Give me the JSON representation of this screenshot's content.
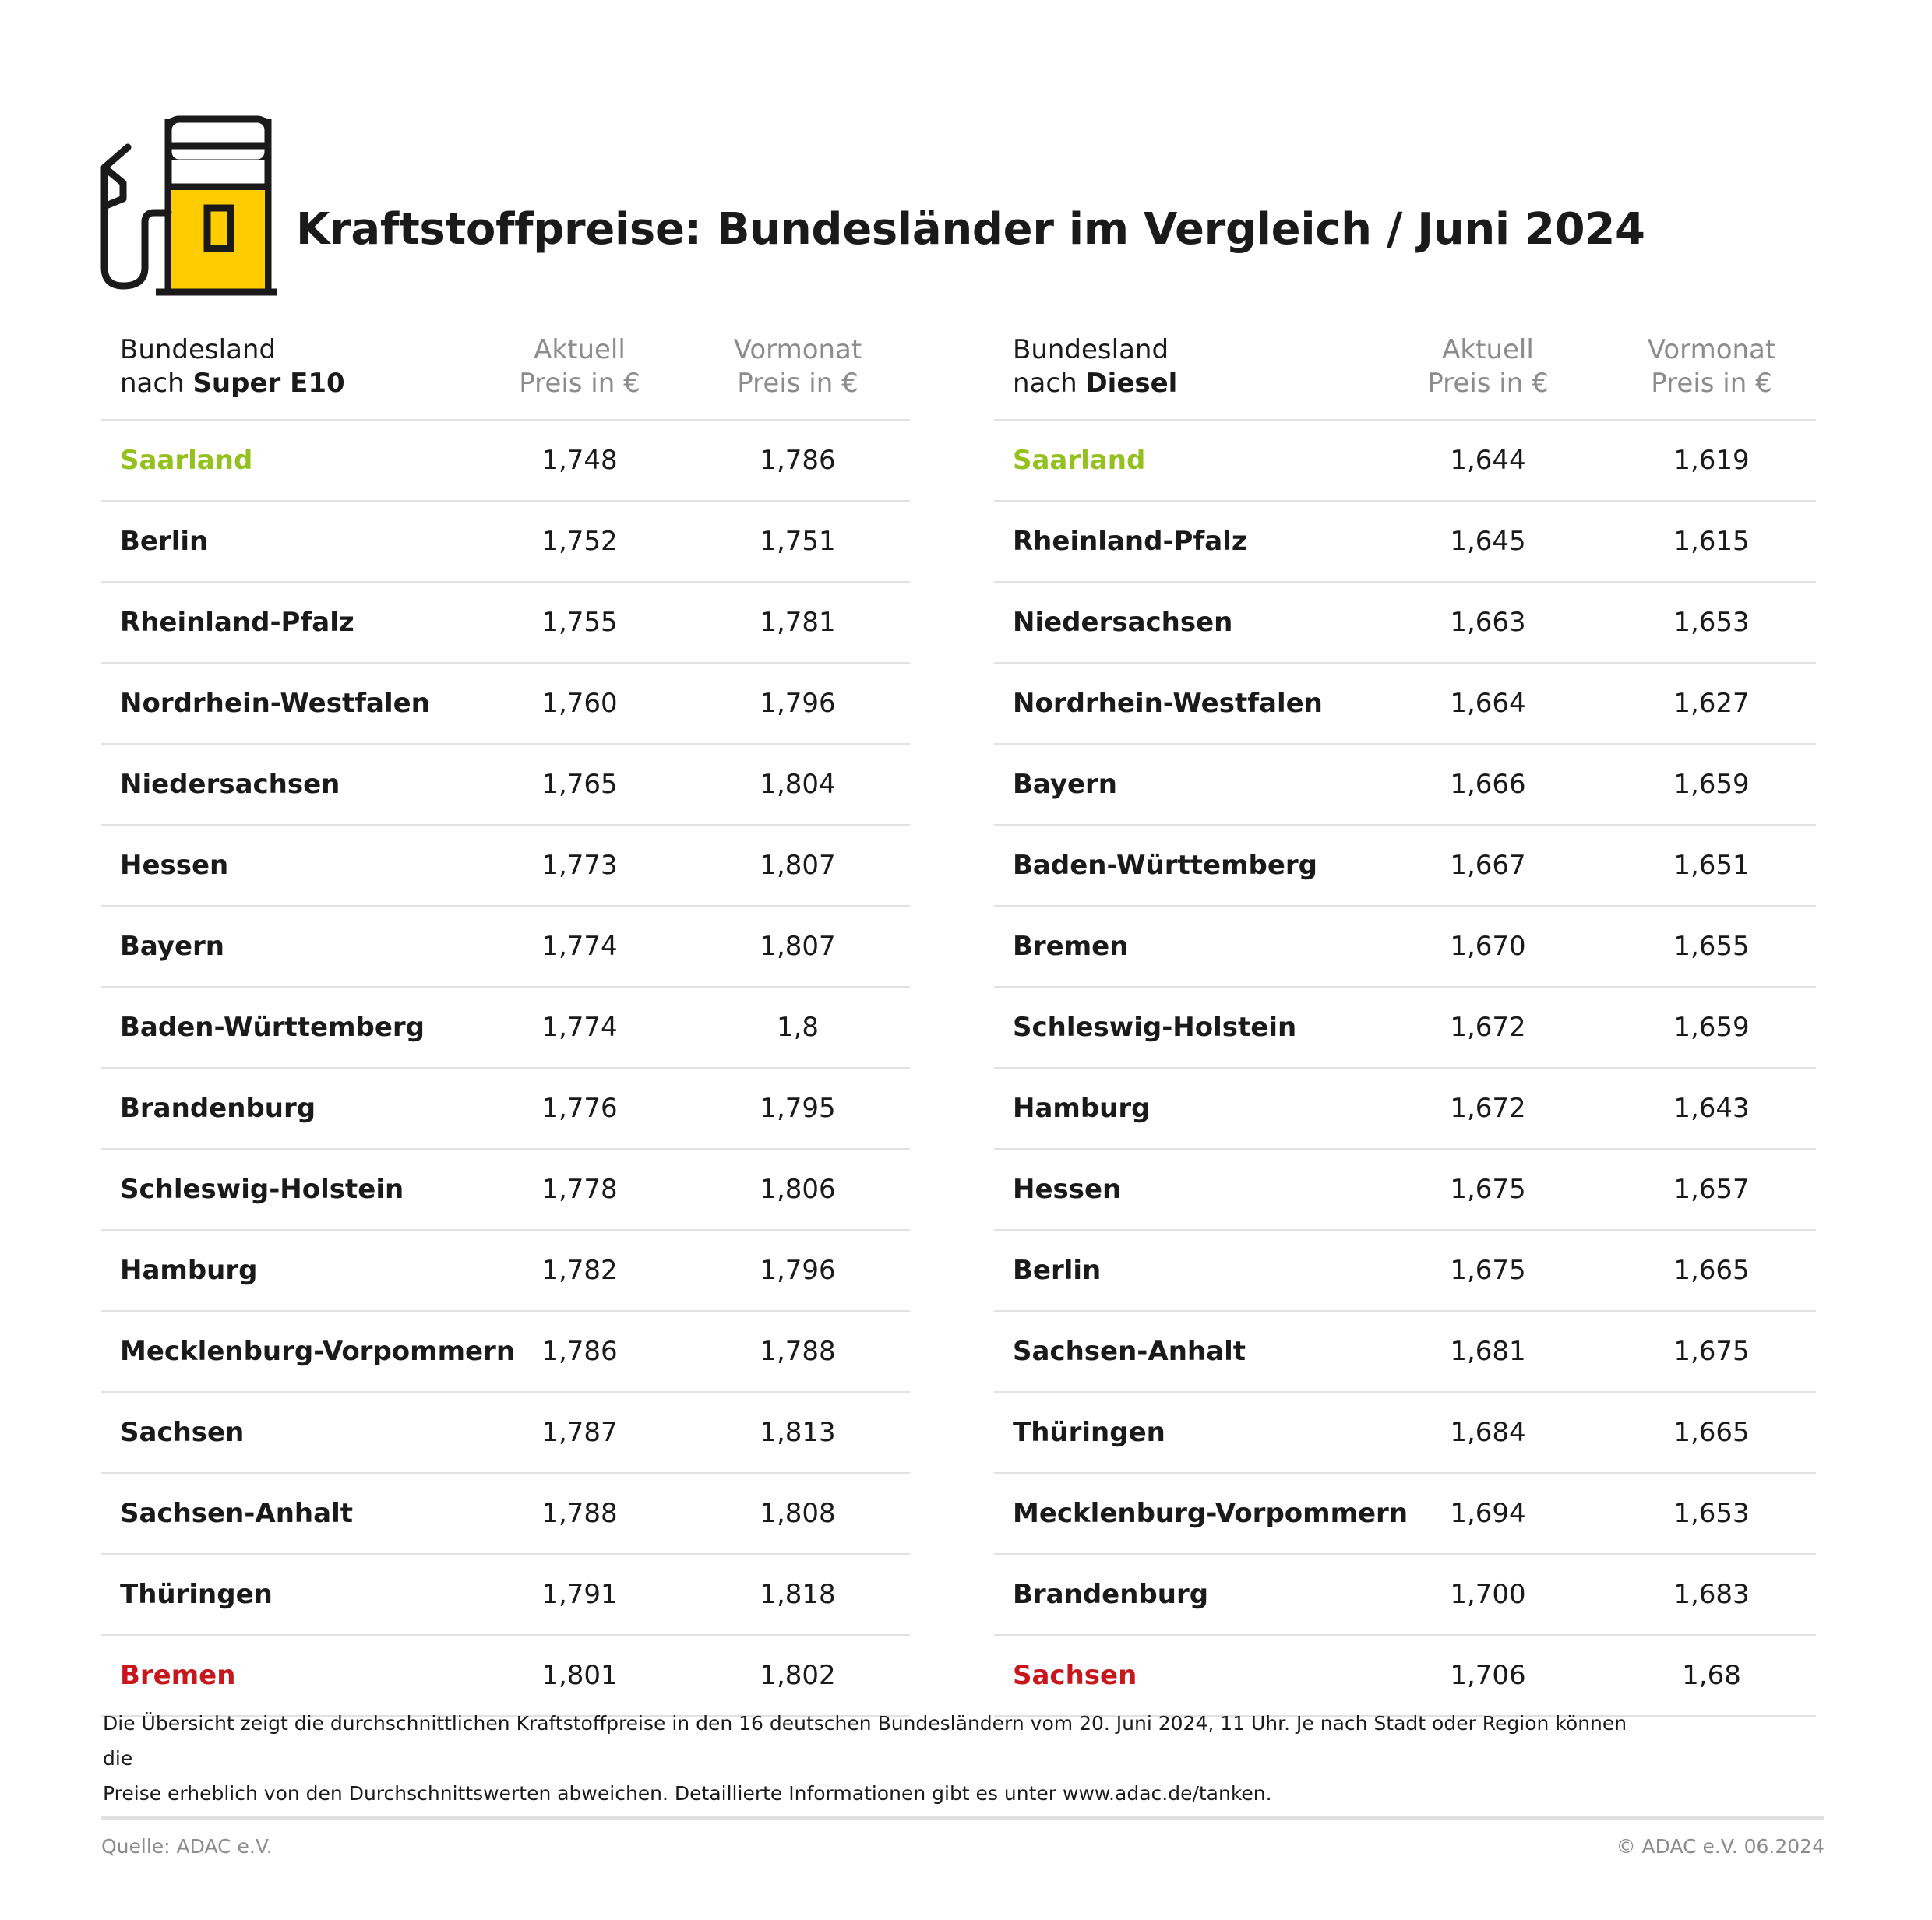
{
  "header": {
    "title": "Kraftstoffpreise: Bundesländer im Vergleich / Juni 2024",
    "icon": "fuel-pump-icon",
    "accent_color": "#ffcc00"
  },
  "colors": {
    "best": "#95c11f",
    "worst": "#c8161d",
    "text": "#1a1a1a",
    "muted": "#8c8c8c"
  },
  "e10": {
    "header": {
      "name_line1": "Bundesland",
      "name_prefix": "nach ",
      "name_fuel": "Super E10",
      "current_line1": "Aktuell",
      "current_line2": "Preis in €",
      "prev_line1": "Vormonat",
      "prev_line2": "Preis in €"
    },
    "rows": [
      {
        "name": "Saarland",
        "current": "1,748",
        "prev": "1,786"
      },
      {
        "name": "Berlin",
        "current": "1,752",
        "prev": "1,751"
      },
      {
        "name": "Rheinland-Pfalz",
        "current": "1,755",
        "prev": "1,781"
      },
      {
        "name": "Nordrhein-Westfalen",
        "current": "1,760",
        "prev": "1,796"
      },
      {
        "name": "Niedersachsen",
        "current": "1,765",
        "prev": "1,804"
      },
      {
        "name": "Hessen",
        "current": "1,773",
        "prev": "1,807"
      },
      {
        "name": "Bayern",
        "current": "1,774",
        "prev": "1,807"
      },
      {
        "name": "Baden-Württemberg",
        "current": "1,774",
        "prev": "1,8"
      },
      {
        "name": "Brandenburg",
        "current": "1,776",
        "prev": "1,795"
      },
      {
        "name": "Schleswig-Holstein",
        "current": "1,778",
        "prev": "1,806"
      },
      {
        "name": "Hamburg",
        "current": "1,782",
        "prev": "1,796"
      },
      {
        "name": "Mecklenburg-Vorpommern",
        "current": "1,786",
        "prev": "1,788"
      },
      {
        "name": "Sachsen",
        "current": "1,787",
        "prev": "1,813"
      },
      {
        "name": "Sachsen-Anhalt",
        "current": "1,788",
        "prev": "1,808"
      },
      {
        "name": "Thüringen",
        "current": "1,791",
        "prev": "1,818"
      },
      {
        "name": "Bremen",
        "current": "1,801",
        "prev": "1,802"
      }
    ]
  },
  "diesel": {
    "header": {
      "name_line1": "Bundesland",
      "name_prefix": "nach ",
      "name_fuel": "Diesel",
      "current_line1": "Aktuell",
      "current_line2": "Preis in €",
      "prev_line1": "Vormonat",
      "prev_line2": "Preis in €"
    },
    "rows": [
      {
        "name": "Saarland",
        "current": "1,644",
        "prev": "1,619"
      },
      {
        "name": "Rheinland-Pfalz",
        "current": "1,645",
        "prev": "1,615"
      },
      {
        "name": "Niedersachsen",
        "current": "1,663",
        "prev": "1,653"
      },
      {
        "name": "Nordrhein-Westfalen",
        "current": "1,664",
        "prev": "1,627"
      },
      {
        "name": "Bayern",
        "current": "1,666",
        "prev": "1,659"
      },
      {
        "name": "Baden-Württemberg",
        "current": "1,667",
        "prev": "1,651"
      },
      {
        "name": "Bremen",
        "current": "1,670",
        "prev": "1,655"
      },
      {
        "name": "Schleswig-Holstein",
        "current": "1,672",
        "prev": "1,659"
      },
      {
        "name": "Hamburg",
        "current": "1,672",
        "prev": "1,643"
      },
      {
        "name": "Hessen",
        "current": "1,675",
        "prev": "1,657"
      },
      {
        "name": "Berlin",
        "current": "1,675",
        "prev": "1,665"
      },
      {
        "name": "Sachsen-Anhalt",
        "current": "1,681",
        "prev": "1,675"
      },
      {
        "name": "Thüringen",
        "current": "1,684",
        "prev": "1,665"
      },
      {
        "name": "Mecklenburg-Vorpommern",
        "current": "1,694",
        "prev": "1,653"
      },
      {
        "name": "Brandenburg",
        "current": "1,700",
        "prev": "1,683"
      },
      {
        "name": "Sachsen",
        "current": "1,706",
        "prev": "1,68"
      }
    ]
  },
  "footer": {
    "note_line1": "Die Übersicht zeigt die durchschnittlichen Kraftstoffpreise in den 16 deutschen Bundesländern vom 20. Juni 2024, 11 Uhr. Je nach Stadt oder Region können die",
    "note_line2": "Preise erheblich von den Durchschnittswerten abweichen. Detaillierte Informationen gibt es unter www.adac.de/tanken.",
    "source": "Quelle: ADAC e.V.",
    "copyright": "© ADAC e.V. 06.2024"
  }
}
